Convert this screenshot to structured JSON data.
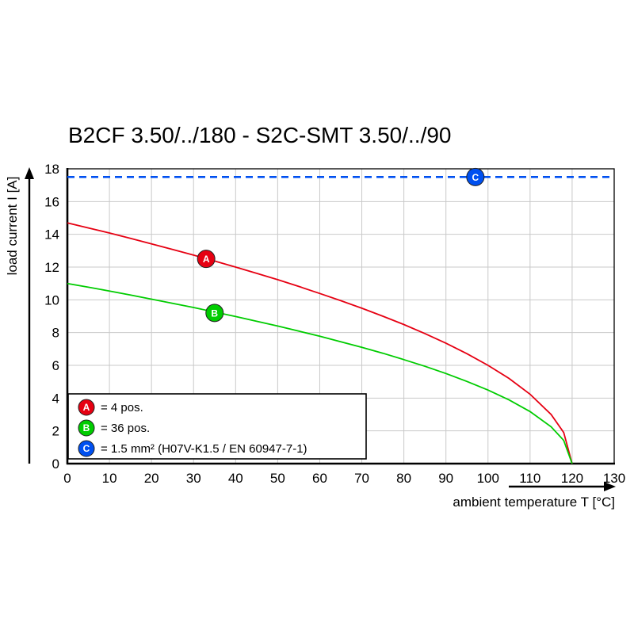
{
  "chart_data": {
    "type": "line",
    "title": "B2CF 3.50/../180 - S2C-SMT 3.50/../90",
    "xlabel": "ambient temperature T [°C]",
    "ylabel": "load current I [A]",
    "xlim": [
      0,
      130
    ],
    "ylim": [
      0,
      18
    ],
    "x_ticks": [
      0,
      10,
      20,
      30,
      40,
      50,
      60,
      70,
      80,
      90,
      100,
      110,
      120,
      130
    ],
    "y_ticks": [
      0,
      2,
      4,
      6,
      8,
      10,
      12,
      14,
      16,
      18
    ],
    "grid": true,
    "legend_position": "bottom-left",
    "series": [
      {
        "id": "A",
        "legend_label": "= 4 pos.",
        "color": "#e60012",
        "style": "solid",
        "marker": {
          "x": 33,
          "y": 12.5
        },
        "points": [
          [
            0,
            14.7
          ],
          [
            5,
            14.39
          ],
          [
            10,
            14.08
          ],
          [
            15,
            13.75
          ],
          [
            20,
            13.42
          ],
          [
            25,
            13.08
          ],
          [
            30,
            12.73
          ],
          [
            35,
            12.37
          ],
          [
            40,
            12
          ],
          [
            45,
            11.62
          ],
          [
            50,
            11.23
          ],
          [
            55,
            10.82
          ],
          [
            60,
            10.39
          ],
          [
            65,
            9.95
          ],
          [
            70,
            9.49
          ],
          [
            75,
            9
          ],
          [
            80,
            8.49
          ],
          [
            85,
            7.94
          ],
          [
            90,
            7.35
          ],
          [
            95,
            6.71
          ],
          [
            100,
            6
          ],
          [
            105,
            5.2
          ],
          [
            110,
            4.24
          ],
          [
            115,
            3
          ],
          [
            118,
            1.9
          ],
          [
            120,
            0
          ]
        ]
      },
      {
        "id": "B",
        "legend_label": "= 36 pos.",
        "color": "#00cc00",
        "style": "solid",
        "marker": {
          "x": 35,
          "y": 9.2
        },
        "points": [
          [
            0,
            11
          ],
          [
            5,
            10.77
          ],
          [
            10,
            10.54
          ],
          [
            15,
            10.29
          ],
          [
            20,
            10.04
          ],
          [
            25,
            9.79
          ],
          [
            30,
            9.53
          ],
          [
            35,
            9.25
          ],
          [
            40,
            8.98
          ],
          [
            45,
            8.69
          ],
          [
            50,
            8.4
          ],
          [
            55,
            8.09
          ],
          [
            60,
            7.78
          ],
          [
            65,
            7.44
          ],
          [
            70,
            7.1
          ],
          [
            75,
            6.74
          ],
          [
            80,
            6.35
          ],
          [
            85,
            5.94
          ],
          [
            90,
            5.5
          ],
          [
            95,
            5.02
          ],
          [
            100,
            4.49
          ],
          [
            105,
            3.89
          ],
          [
            110,
            3.18
          ],
          [
            115,
            2.25
          ],
          [
            118,
            1.42
          ],
          [
            120,
            0
          ]
        ]
      },
      {
        "id": "C",
        "legend_label": "= 1.5 mm² (H07V-K1.5 / EN 60947-7-1)",
        "color": "#0050f0",
        "style": "dashed",
        "marker": {
          "x": 97,
          "y": 17.5
        },
        "points": [
          [
            0,
            17.5
          ],
          [
            130,
            17.5
          ]
        ]
      }
    ]
  }
}
